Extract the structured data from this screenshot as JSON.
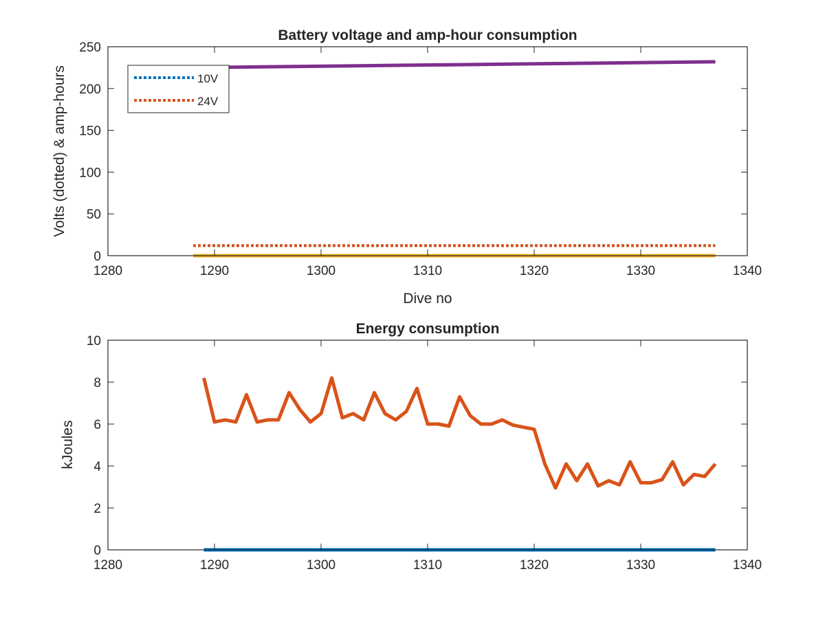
{
  "colors": {
    "blue": "#0072bd",
    "orange": "#d95319",
    "yellow": "#edb120",
    "purple": "#7e2f8e",
    "axis": "#262626"
  },
  "chart_data": [
    {
      "type": "line",
      "title": "Battery voltage and amp-hour consumption",
      "xlabel": "Dive no",
      "ylabel": "Volts (dotted) & amp-hours",
      "xlim": [
        1280,
        1340
      ],
      "ylim": [
        0,
        250
      ],
      "xticks": [
        "1280",
        "1290",
        "1300",
        "1310",
        "1320",
        "1330",
        "1340"
      ],
      "yticks": [
        "0",
        "50",
        "100",
        "150",
        "200",
        "250"
      ],
      "grid": false,
      "legend_position": "top-left",
      "series": [
        {
          "name": "10V",
          "color": "#0072bd",
          "style": "dotted",
          "x": [
            1288,
            1337
          ],
          "y": [
            12,
            12
          ],
          "in_legend": true
        },
        {
          "name": "24V",
          "color": "#d95319",
          "style": "dotted",
          "x": [
            1288,
            1337
          ],
          "y": [
            12,
            12
          ],
          "in_legend": true
        },
        {
          "color": "#edb120",
          "style": "solid",
          "x": [
            1288,
            1337
          ],
          "y": [
            0,
            0
          ],
          "in_legend": false
        },
        {
          "color": "#7e2f8e",
          "style": "solid",
          "x": [
            1288,
            1337
          ],
          "y": [
            225,
            232
          ],
          "in_legend": false
        }
      ]
    },
    {
      "type": "line",
      "title": "Energy consumption",
      "xlabel": "",
      "ylabel": "kJoules",
      "xlim": [
        1280,
        1340
      ],
      "ylim": [
        0,
        10
      ],
      "xticks": [
        "1280",
        "1290",
        "1300",
        "1310",
        "1320",
        "1330",
        "1340"
      ],
      "yticks": [
        "0",
        "2",
        "4",
        "6",
        "8",
        "10"
      ],
      "grid": false,
      "series": [
        {
          "color": "#0072bd",
          "style": "solid",
          "x": [
            1289,
            1337
          ],
          "y": [
            0,
            0
          ]
        },
        {
          "color": "#d95319",
          "style": "solid",
          "x": [
            1289,
            1290,
            1291,
            1292,
            1293,
            1294,
            1295,
            1296,
            1297,
            1298,
            1299,
            1300,
            1301,
            1302,
            1303,
            1304,
            1305,
            1306,
            1307,
            1308,
            1309,
            1310,
            1311,
            1312,
            1313,
            1314,
            1315,
            1316,
            1317,
            1318,
            1319,
            1320,
            1321,
            1322,
            1323,
            1324,
            1325,
            1326,
            1327,
            1328,
            1329,
            1330,
            1331,
            1332,
            1333,
            1334,
            1335,
            1336,
            1337
          ],
          "y": [
            8.2,
            6.1,
            6.2,
            6.1,
            7.4,
            6.1,
            6.2,
            6.2,
            7.5,
            6.7,
            6.1,
            6.5,
            8.2,
            6.3,
            6.5,
            6.2,
            7.5,
            6.5,
            6.2,
            6.6,
            7.7,
            6.0,
            6.0,
            5.9,
            7.3,
            6.4,
            6.0,
            6.0,
            6.2,
            5.95,
            5.85,
            5.75,
            4.1,
            2.95,
            4.1,
            3.3,
            4.1,
            3.05,
            3.3,
            3.1,
            4.2,
            3.2,
            3.2,
            3.35,
            4.2,
            3.1,
            3.6,
            3.5,
            4.1
          ]
        }
      ]
    }
  ]
}
